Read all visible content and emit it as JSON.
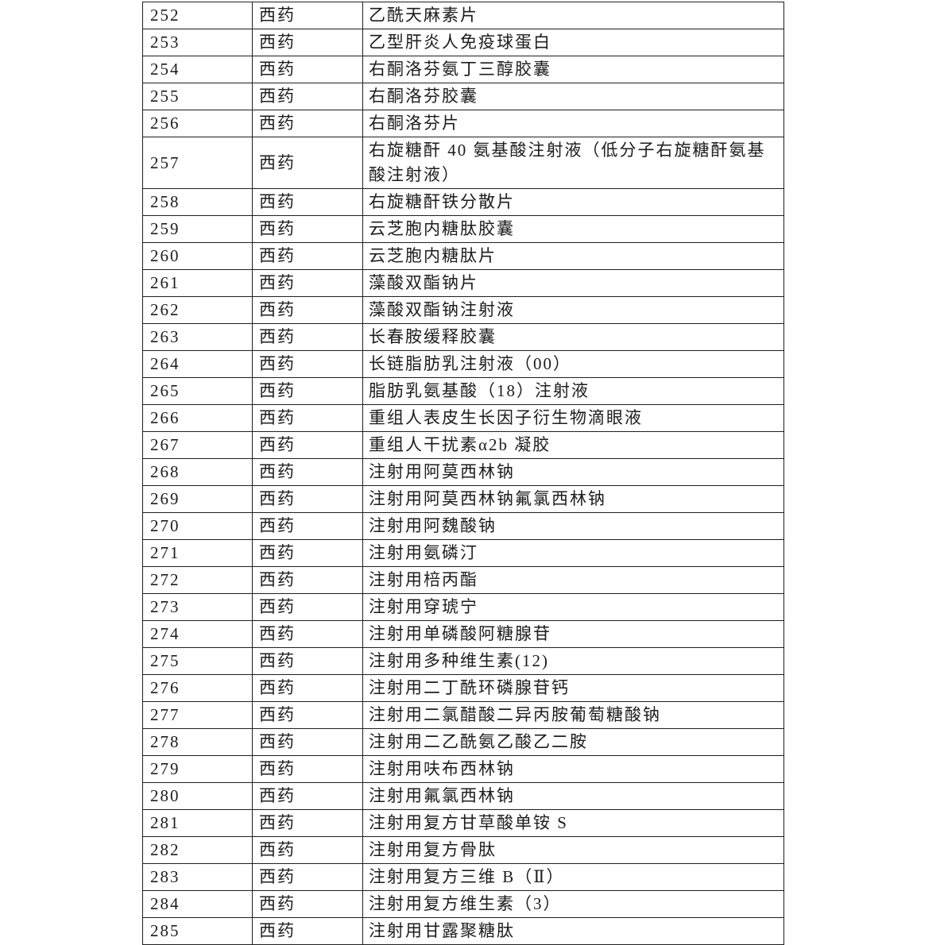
{
  "document": {
    "kind": "drug-reimbursement-list-page",
    "category_repeated_label": "西药"
  },
  "colors": {
    "background": "#ffffff",
    "text": "#1c1c1c",
    "border": "#1f1f1f"
  },
  "table": {
    "rows": [
      {
        "no": "252",
        "category": "西药",
        "name": "乙酰天麻素片"
      },
      {
        "no": "253",
        "category": "西药",
        "name": "乙型肝炎人免疫球蛋白"
      },
      {
        "no": "254",
        "category": "西药",
        "name": "右酮洛芬氨丁三醇胶囊"
      },
      {
        "no": "255",
        "category": "西药",
        "name": "右酮洛芬胶囊"
      },
      {
        "no": "256",
        "category": "西药",
        "name": "右酮洛芬片"
      },
      {
        "no": "257",
        "category": "西药",
        "name": "右旋糖酐 40 氨基酸注射液（低分子右旋糖酐氨基酸注射液）"
      },
      {
        "no": "258",
        "category": "西药",
        "name": "右旋糖酐铁分散片"
      },
      {
        "no": "259",
        "category": "西药",
        "name": "云芝胞内糖肽胶囊"
      },
      {
        "no": "260",
        "category": "西药",
        "name": "云芝胞内糖肽片"
      },
      {
        "no": "261",
        "category": "西药",
        "name": "藻酸双酯钠片"
      },
      {
        "no": "262",
        "category": "西药",
        "name": "藻酸双酯钠注射液"
      },
      {
        "no": "263",
        "category": "西药",
        "name": "长春胺缓释胶囊"
      },
      {
        "no": "264",
        "category": "西药",
        "name": "长链脂肪乳注射液（00）"
      },
      {
        "no": "265",
        "category": "西药",
        "name": "脂肪乳氨基酸（18）注射液"
      },
      {
        "no": "266",
        "category": "西药",
        "name": "重组人表皮生长因子衍生物滴眼液"
      },
      {
        "no": "267",
        "category": "西药",
        "name": "重组人干扰素α2b 凝胶"
      },
      {
        "no": "268",
        "category": "西药",
        "name": "注射用阿莫西林钠"
      },
      {
        "no": "269",
        "category": "西药",
        "name": "注射用阿莫西林钠氟氯西林钠"
      },
      {
        "no": "270",
        "category": "西药",
        "name": "注射用阿魏酸钠"
      },
      {
        "no": "271",
        "category": "西药",
        "name": "注射用氨磷汀"
      },
      {
        "no": "272",
        "category": "西药",
        "name": "注射用棓丙酯"
      },
      {
        "no": "273",
        "category": "西药",
        "name": "注射用穿琥宁"
      },
      {
        "no": "274",
        "category": "西药",
        "name": "注射用单磷酸阿糖腺苷"
      },
      {
        "no": "275",
        "category": "西药",
        "name": "注射用多种维生素(12)"
      },
      {
        "no": "276",
        "category": "西药",
        "name": "注射用二丁酰环磷腺苷钙"
      },
      {
        "no": "277",
        "category": "西药",
        "name": "注射用二氯醋酸二异丙胺葡萄糖酸钠"
      },
      {
        "no": "278",
        "category": "西药",
        "name": "注射用二乙酰氨乙酸乙二胺"
      },
      {
        "no": "279",
        "category": "西药",
        "name": "注射用呋布西林钠"
      },
      {
        "no": "280",
        "category": "西药",
        "name": "注射用氟氯西林钠"
      },
      {
        "no": "281",
        "category": "西药",
        "name": "注射用复方甘草酸单铵 S"
      },
      {
        "no": "282",
        "category": "西药",
        "name": "注射用复方骨肽"
      },
      {
        "no": "283",
        "category": "西药",
        "name": "注射用复方三维 B（Ⅱ）"
      },
      {
        "no": "284",
        "category": "西药",
        "name": "注射用复方维生素（3）"
      },
      {
        "no": "285",
        "category": "西药",
        "name": "注射用甘露聚糖肽"
      }
    ]
  }
}
